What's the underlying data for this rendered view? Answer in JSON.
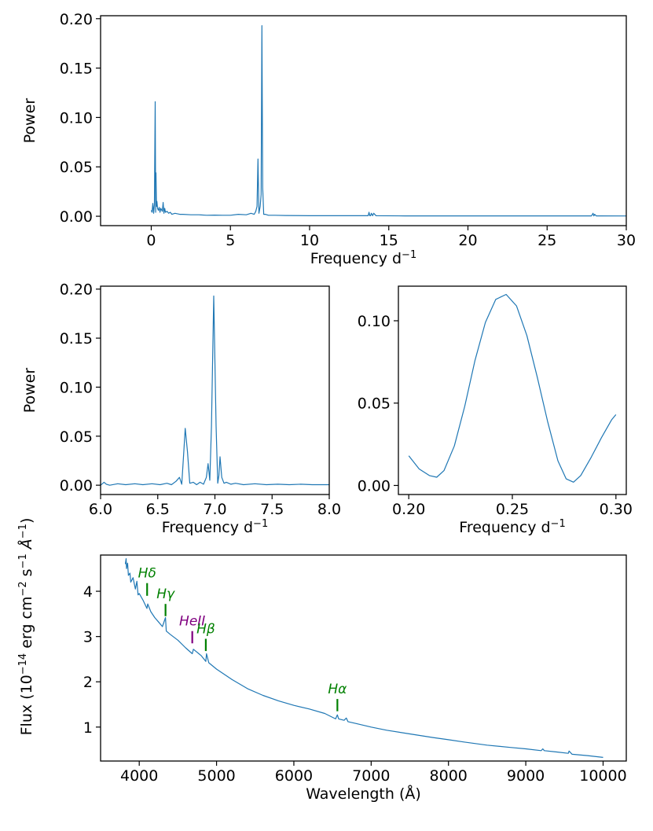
{
  "chart_data": [
    {
      "type": "line",
      "name": "periodogram-full",
      "xlabel": "Frequency d",
      "xlabel_sup": "−1",
      "ylabel": "Power",
      "xlim": [
        -3.2,
        30
      ],
      "ylim": [
        -0.0095,
        0.203
      ],
      "xticks": [
        0,
        5,
        10,
        15,
        20,
        25,
        30
      ],
      "xtick_labels": [
        "0",
        "5",
        "10",
        "15",
        "20",
        "25",
        "30"
      ],
      "yticks": [
        0.0,
        0.05,
        0.1,
        0.15,
        0.2
      ],
      "ytick_labels": [
        "0.00",
        "0.05",
        "0.10",
        "0.15",
        "0.20"
      ],
      "series": [
        {
          "name": "power",
          "x": [
            0,
            0.05,
            0.1,
            0.15,
            0.2,
            0.247,
            0.28,
            0.3,
            0.33,
            0.36,
            0.4,
            0.45,
            0.5,
            0.55,
            0.6,
            0.7,
            0.75,
            0.8,
            0.85,
            0.9,
            1.0,
            1.1,
            1.2,
            1.3,
            1.5,
            1.8,
            2.0,
            2.5,
            3.0,
            3.5,
            4.0,
            4.5,
            5.0,
            5.5,
            6.0,
            6.3,
            6.5,
            6.6,
            6.68,
            6.74,
            6.8,
            6.88,
            6.94,
            6.99,
            7.04,
            7.1,
            7.2,
            7.4,
            7.8,
            8.5,
            10,
            12,
            13.7,
            13.75,
            13.8,
            13.85,
            13.9,
            13.98,
            14.05,
            14.2,
            16,
            20,
            25,
            27.8,
            27.9,
            27.95,
            28.0,
            28.1,
            30
          ],
          "y": [
            0.006,
            0.004,
            0.013,
            0.003,
            0.012,
            0.116,
            0.004,
            0.044,
            0.01,
            0.015,
            0.008,
            0.006,
            0.009,
            0.004,
            0.008,
            0.005,
            0.014,
            0.003,
            0.008,
            0.004,
            0.005,
            0.003,
            0.004,
            0.002,
            0.003,
            0.002,
            0.002,
            0.0015,
            0.0015,
            0.001,
            0.0012,
            0.001,
            0.001,
            0.002,
            0.0015,
            0.003,
            0.002,
            0.005,
            0.01,
            0.058,
            0.003,
            0.01,
            0.022,
            0.193,
            0.029,
            0.002,
            0.002,
            0.001,
            0.001,
            0.0008,
            0.0005,
            0.0005,
            0.0005,
            0.004,
            0.0005,
            0.0005,
            0.003,
            0.0005,
            0.003,
            0.0005,
            0.0004,
            0.0004,
            0.0004,
            0.0004,
            0.003,
            0.0004,
            0.002,
            0.0004,
            0.0003
          ]
        }
      ]
    },
    {
      "type": "line",
      "name": "periodogram-zoom-7",
      "xlabel": "Frequency d",
      "xlabel_sup": "−1",
      "ylabel": "Power",
      "xlim": [
        6.0,
        8.0
      ],
      "ylim": [
        -0.0095,
        0.203
      ],
      "xticks": [
        6.0,
        6.5,
        7.0,
        7.5,
        8.0
      ],
      "xtick_labels": [
        "6.0",
        "6.5",
        "7.0",
        "7.5",
        "8.0"
      ],
      "yticks": [
        0.0,
        0.05,
        0.1,
        0.15,
        0.2
      ],
      "ytick_labels": [
        "0.00",
        "0.05",
        "0.10",
        "0.15",
        "0.20"
      ],
      "series": [
        {
          "name": "power",
          "x": [
            6.0,
            6.03,
            6.05,
            6.08,
            6.15,
            6.22,
            6.3,
            6.37,
            6.45,
            6.52,
            6.58,
            6.62,
            6.66,
            6.69,
            6.71,
            6.73,
            6.74,
            6.76,
            6.78,
            6.81,
            6.84,
            6.87,
            6.9,
            6.925,
            6.94,
            6.955,
            6.97,
            6.99,
            7.01,
            7.025,
            7.035,
            7.045,
            7.06,
            7.08,
            7.1,
            7.14,
            7.18,
            7.25,
            7.35,
            7.45,
            7.55,
            7.65,
            7.75,
            7.85,
            7.95,
            8.0
          ],
          "y": [
            0.0,
            0.003,
            0.001,
            0.0,
            0.0015,
            0.0005,
            0.0015,
            0.0005,
            0.0015,
            0.0005,
            0.002,
            0.0005,
            0.004,
            0.008,
            0.001,
            0.038,
            0.058,
            0.034,
            0.002,
            0.003,
            0.0005,
            0.003,
            0.001,
            0.008,
            0.022,
            0.005,
            0.06,
            0.193,
            0.06,
            0.002,
            0.01,
            0.029,
            0.008,
            0.002,
            0.003,
            0.001,
            0.002,
            0.0005,
            0.0015,
            0.0005,
            0.001,
            0.0005,
            0.001,
            0.0005,
            0.0005,
            0.0005
          ]
        }
      ]
    },
    {
      "type": "line",
      "name": "periodogram-zoom-025",
      "xlabel": "Frequency d",
      "xlabel_sup": "−1",
      "ylabel": "",
      "xlim": [
        0.195,
        0.305
      ],
      "ylim": [
        -0.0055,
        0.121
      ],
      "xticks": [
        0.2,
        0.25,
        0.3
      ],
      "xtick_labels": [
        "0.20",
        "0.25",
        "0.30"
      ],
      "yticks": [
        0.0,
        0.05,
        0.1
      ],
      "ytick_labels": [
        "0.00",
        "0.05",
        "0.10"
      ],
      "series": [
        {
          "name": "power",
          "x": [
            0.2,
            0.205,
            0.21,
            0.2135,
            0.217,
            0.222,
            0.227,
            0.232,
            0.237,
            0.242,
            0.247,
            0.252,
            0.257,
            0.262,
            0.267,
            0.272,
            0.276,
            0.2795,
            0.283,
            0.288,
            0.293,
            0.298,
            0.3
          ],
          "y": [
            0.018,
            0.01,
            0.006,
            0.005,
            0.009,
            0.024,
            0.048,
            0.076,
            0.099,
            0.113,
            0.116,
            0.109,
            0.091,
            0.066,
            0.039,
            0.015,
            0.004,
            0.002,
            0.006,
            0.017,
            0.029,
            0.04,
            0.043
          ]
        }
      ]
    },
    {
      "type": "line",
      "name": "spectrum",
      "xlabel": "Wavelength (Å)",
      "ylabel": "Flux (10",
      "ylabel_sup1": "−14",
      "ylabel_mid": " erg cm",
      "ylabel_sup2": "−2",
      "ylabel_mid2": " s",
      "ylabel_sup3": "−1",
      "ylabel_angstrom": " Å",
      "ylabel_sup4": "−1",
      "ylabel_end": ")",
      "xlim": [
        3500,
        10300
      ],
      "ylim": [
        0.25,
        4.8
      ],
      "xticks": [
        4000,
        5000,
        6000,
        7000,
        8000,
        9000,
        10000
      ],
      "xtick_labels": [
        "4000",
        "5000",
        "6000",
        "7000",
        "8000",
        "9000",
        "10000"
      ],
      "yticks": [
        1,
        2,
        3,
        4
      ],
      "ytick_labels": [
        "1",
        "2",
        "3",
        "4"
      ],
      "series": [
        {
          "name": "flux",
          "x": [
            3820,
            3830,
            3835,
            3850,
            3860,
            3880,
            3890,
            3920,
            3950,
            3970,
            3985,
            4000,
            4050,
            4100,
            4110,
            4150,
            4200,
            4250,
            4300,
            4340,
            4350,
            4400,
            4500,
            4600,
            4686,
            4700,
            4800,
            4861,
            4870,
            4900,
            5000,
            5200,
            5400,
            5600,
            5800,
            6000,
            6200,
            6400,
            6540,
            6563,
            6580,
            6650,
            6678,
            6700,
            6800,
            7000,
            7200,
            7500,
            7800,
            8000,
            8200,
            8500,
            8800,
            9000,
            9200,
            9220,
            9240,
            9400,
            9550,
            9560,
            9600,
            9800,
            10000
          ],
          "y": [
            4.6,
            4.72,
            4.5,
            4.62,
            4.35,
            4.4,
            4.2,
            4.3,
            4.05,
            4.22,
            3.92,
            3.95,
            3.8,
            3.62,
            3.72,
            3.55,
            3.42,
            3.32,
            3.22,
            3.42,
            3.12,
            3.05,
            2.92,
            2.75,
            2.62,
            2.72,
            2.58,
            2.45,
            2.62,
            2.42,
            2.28,
            2.05,
            1.85,
            1.7,
            1.58,
            1.48,
            1.4,
            1.3,
            1.18,
            1.27,
            1.18,
            1.15,
            1.2,
            1.12,
            1.08,
            1.0,
            0.93,
            0.85,
            0.77,
            0.72,
            0.67,
            0.6,
            0.55,
            0.52,
            0.48,
            0.52,
            0.48,
            0.45,
            0.42,
            0.47,
            0.4,
            0.37,
            0.33
          ]
        }
      ],
      "annotations": [
        {
          "label": "Hδ",
          "x": 4102,
          "y_tick_bottom": 3.9,
          "y_tick_top": 4.18,
          "color": "#008000"
        },
        {
          "label": "Hγ",
          "x": 4340,
          "y_tick_bottom": 3.45,
          "y_tick_top": 3.72,
          "color": "#008000"
        },
        {
          "label": "HeII",
          "x": 4686,
          "y_tick_bottom": 2.85,
          "y_tick_top": 3.12,
          "color": "#800080"
        },
        {
          "label": "Hβ",
          "x": 4861,
          "y_tick_bottom": 2.68,
          "y_tick_top": 2.95,
          "color": "#008000"
        },
        {
          "label": "Hα",
          "x": 6563,
          "y_tick_bottom": 1.35,
          "y_tick_top": 1.62,
          "color": "#008000"
        }
      ]
    }
  ],
  "colors": {
    "line": "#1f77b4",
    "hydrogen": "#008000",
    "helium": "#800080"
  }
}
